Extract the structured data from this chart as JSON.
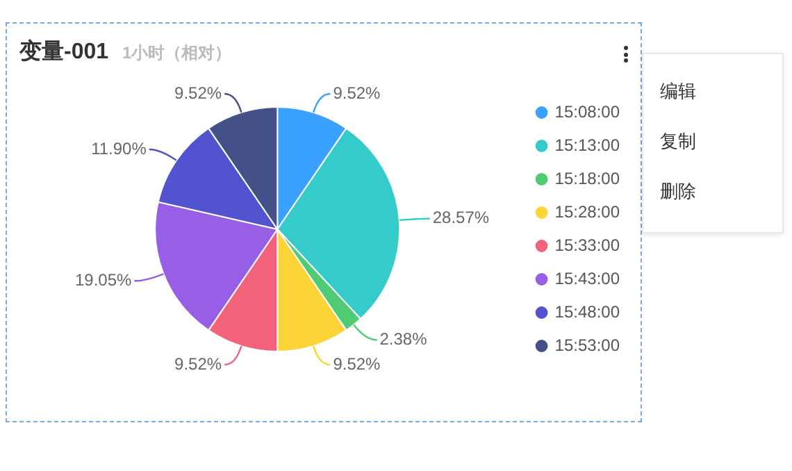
{
  "chart_data": {
    "type": "pie",
    "title": "变量-001",
    "subtitle": "1小时（相对）",
    "categories": [
      "15:08:00",
      "15:13:00",
      "15:18:00",
      "15:28:00",
      "15:33:00",
      "15:43:00",
      "15:48:00",
      "15:53:00"
    ],
    "values": [
      9.52,
      28.57,
      2.38,
      9.52,
      9.52,
      19.05,
      11.9,
      9.52
    ],
    "colors": [
      "#3ba1ff",
      "#36cbcb",
      "#4ecb73",
      "#fbd437",
      "#f2637b",
      "#975fe5",
      "#5254cf",
      "#435188"
    ],
    "value_labels": [
      "9.52%",
      "28.57%",
      "2.38%",
      "9.52%",
      "9.52%",
      "19.05%",
      "11.90%",
      "9.52%"
    ],
    "legend": "right",
    "annotations": [
      "编辑",
      "复制",
      "删除"
    ]
  }
}
